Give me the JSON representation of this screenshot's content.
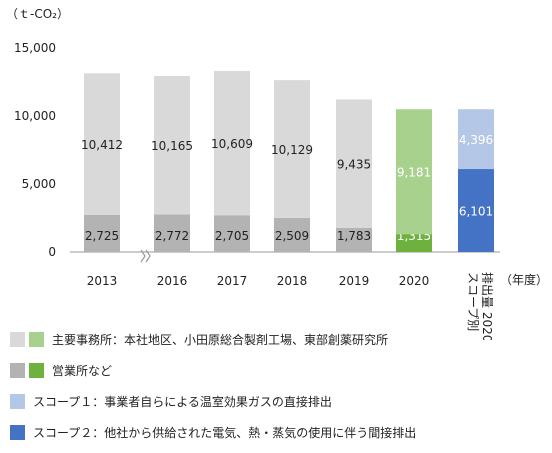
{
  "chart_data": {
    "type": "bar",
    "stacked": true,
    "unit": "（ｔ-CO₂）",
    "categories": [
      "2013",
      "2016",
      "2017",
      "2018",
      "2019",
      "2020",
      "排出量 2020\nスコープ別"
    ],
    "x_unit": "（年度）",
    "ylim": [
      0,
      15000
    ],
    "yticks": [
      "0",
      "5,000",
      "10,000",
      "15,000"
    ],
    "grid": false,
    "axis_break_between": [
      "2013",
      "2016"
    ],
    "series": [
      {
        "name": "営業所など",
        "colors": [
          "#b3b3b3",
          "#b3b3b3",
          "#b3b3b3",
          "#b3b3b3",
          "#b3b3b3",
          "#6fb13f",
          null
        ],
        "values": [
          2725,
          2772,
          2705,
          2509,
          1783,
          1315,
          null
        ],
        "labels": [
          "2,725",
          "2,772",
          "2,705",
          "2,509",
          "1,783",
          "1,315",
          ""
        ]
      },
      {
        "name": "主要事務所：本社地区、小田原総合製剤工場、東部創薬研究所",
        "colors": [
          "#d9d9d9",
          "#d9d9d9",
          "#d9d9d9",
          "#d9d9d9",
          "#d9d9d9",
          "#a9d18e",
          null
        ],
        "values": [
          10412,
          10165,
          10609,
          10129,
          9435,
          9181,
          null
        ],
        "labels": [
          "10,412",
          "10,165",
          "10,609",
          "10,129",
          "9,435",
          "9,181",
          ""
        ]
      },
      {
        "name": "スコープ２：他社から供給された電気、熱・蒸気の使用に伴う間接排出",
        "colors": [
          null,
          null,
          null,
          null,
          null,
          null,
          "#4472c4"
        ],
        "values": [
          null,
          null,
          null,
          null,
          null,
          null,
          6101
        ],
        "labels": [
          "",
          "",
          "",
          "",
          "",
          "",
          "6,101"
        ]
      },
      {
        "name": "スコープ１：事業者自らによる温室効果ガスの直接排出",
        "colors": [
          null,
          null,
          null,
          null,
          null,
          null,
          "#b4c7e7"
        ],
        "values": [
          null,
          null,
          null,
          null,
          null,
          null,
          4396
        ],
        "labels": [
          "",
          "",
          "",
          "",
          "",
          "",
          "4,396"
        ]
      }
    ]
  },
  "legend": [
    {
      "text": "主要事務所：本社地区、小田原総合製剤工場、東部創薬研究所",
      "colors": [
        "#d9d9d9",
        "#a9d18e"
      ]
    },
    {
      "text": "営業所など",
      "colors": [
        "#b3b3b3",
        "#6fb13f"
      ]
    },
    {
      "text": "スコープ１：事業者自らによる温室効果ガスの直接排出",
      "colors": [
        "#b4c7e7"
      ]
    },
    {
      "text": "スコープ２：他社から供給された電気、熱・蒸気の使用に伴う間接排出",
      "colors": [
        "#4472c4"
      ]
    }
  ]
}
